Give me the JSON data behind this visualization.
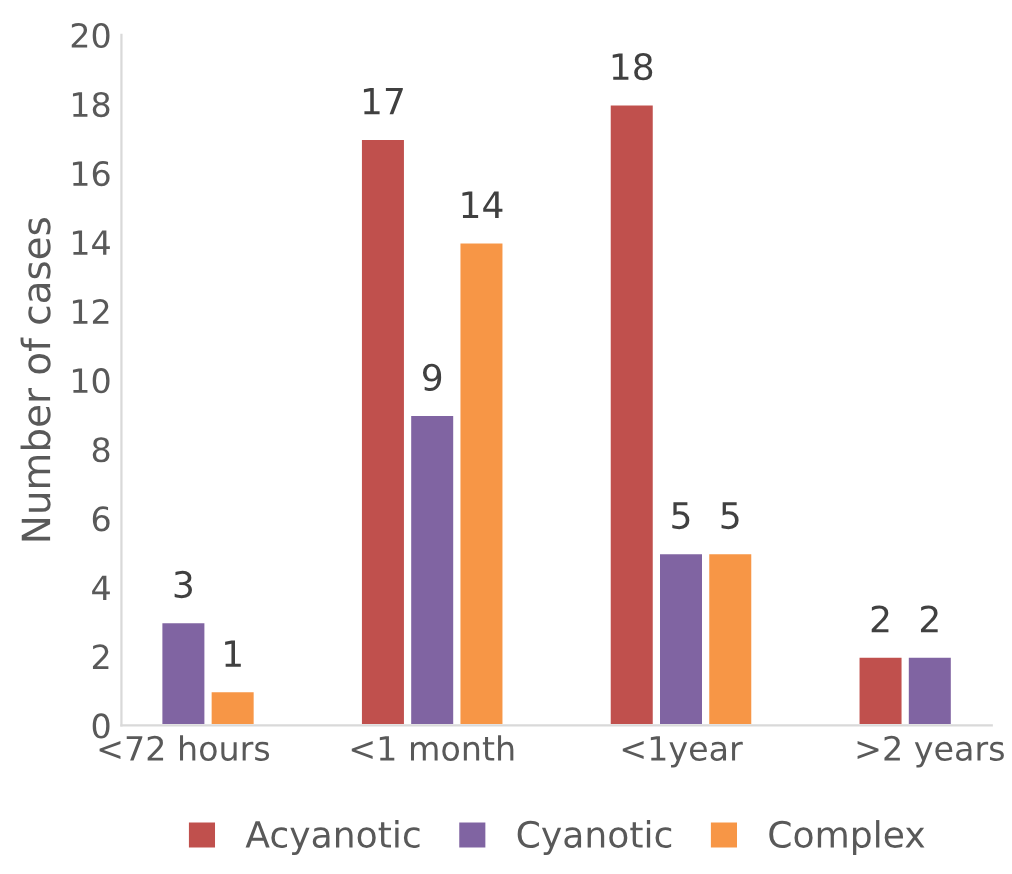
{
  "chart_data": {
    "type": "bar",
    "ylabel": "Number of cases",
    "categories": [
      "<72 hours",
      "<1 month",
      "<1year",
      ">2 years"
    ],
    "series": [
      {
        "name": "Acyanotic",
        "color": "#c0504d",
        "values": [
          null,
          17,
          18,
          2
        ]
      },
      {
        "name": "Cyanotic",
        "color": "#8064a2",
        "values": [
          3,
          9,
          5,
          2
        ]
      },
      {
        "name": "Complex",
        "color": "#f79646",
        "values": [
          1,
          14,
          5,
          null
        ]
      }
    ],
    "ylim": [
      0,
      20
    ],
    "yticks": [
      0,
      2,
      4,
      6,
      8,
      10,
      12,
      14,
      16,
      18,
      20
    ],
    "data_labels": true,
    "legend": "bottom",
    "grid": false
  }
}
